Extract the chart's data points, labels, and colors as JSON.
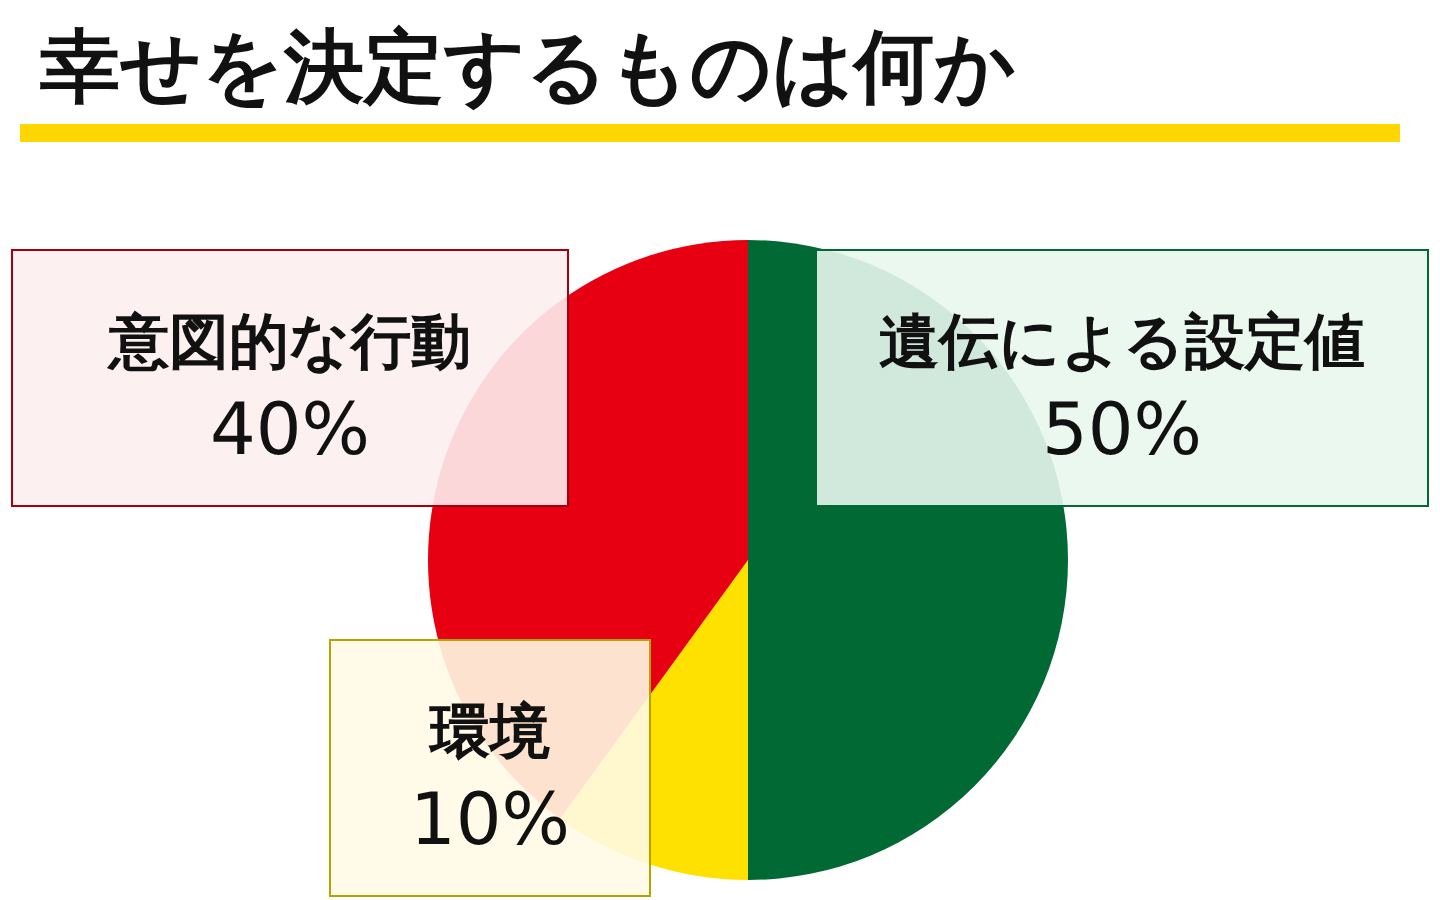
{
  "chart_data": {
    "type": "pie",
    "title": "幸せを決定するものは何か",
    "categories": [
      "遺伝による設定値",
      "環境",
      "意図的な行動"
    ],
    "values": [
      50,
      10,
      40
    ],
    "colors": [
      "#006934",
      "#ffe100",
      "#e60012"
    ],
    "value_labels": [
      "50%",
      "10%",
      "40%"
    ]
  }
}
